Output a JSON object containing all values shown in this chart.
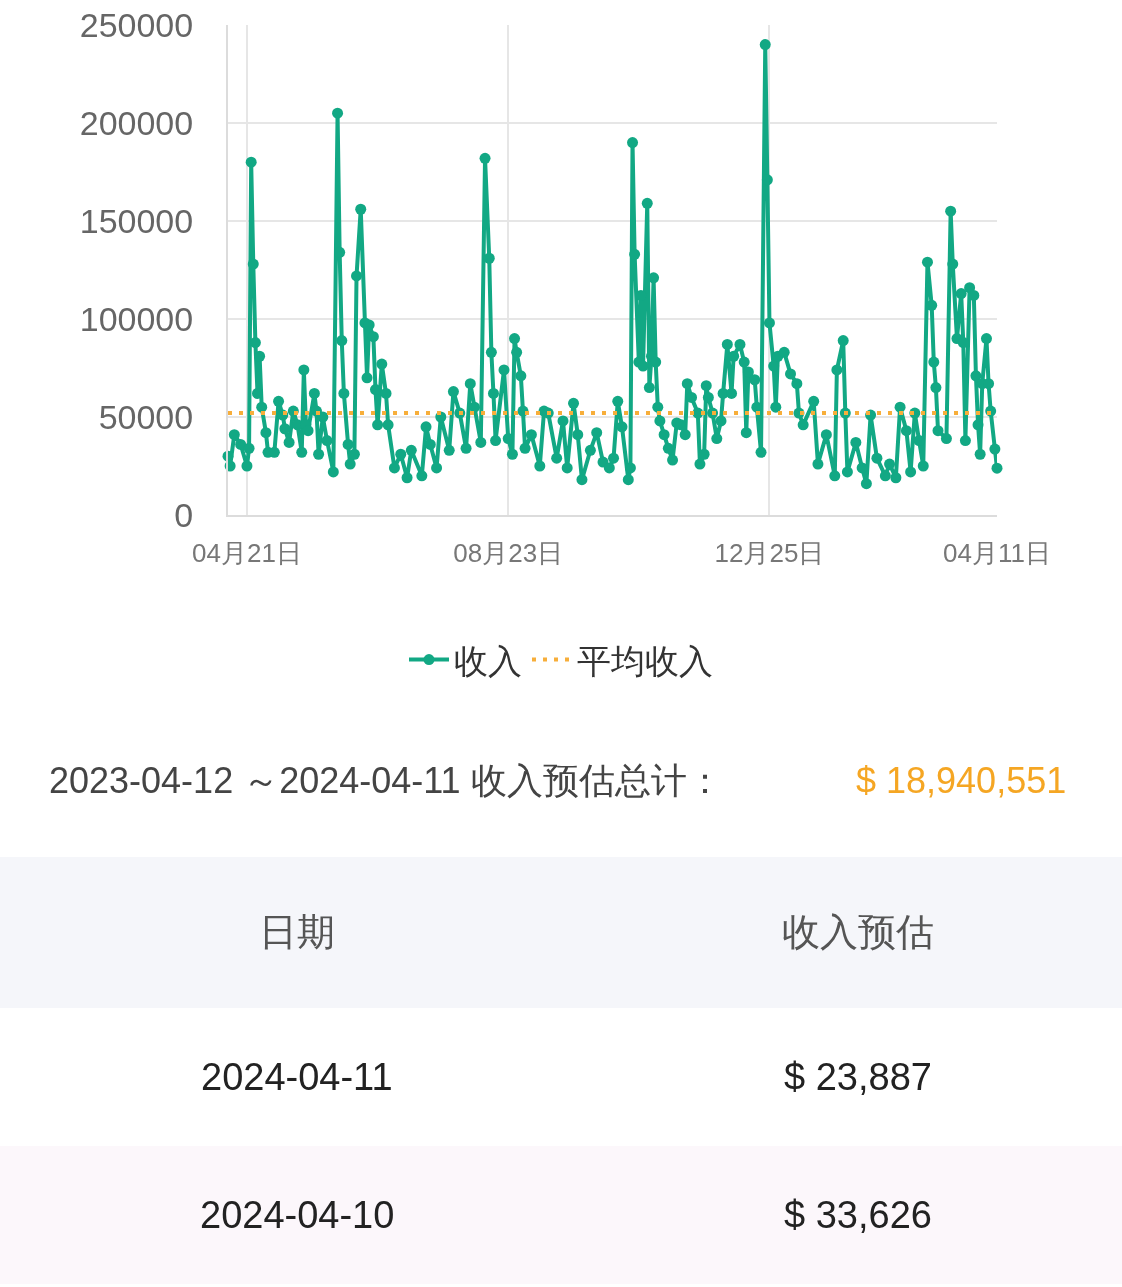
{
  "chart_data": {
    "type": "line",
    "xlim": [
      "2023-04-12",
      "2024-04-11"
    ],
    "xticks": [
      {
        "value": "2023-04-21",
        "label": "04月21日"
      },
      {
        "value": "2023-08-23",
        "label": "08月23日"
      },
      {
        "value": "2023-12-25",
        "label": "12月25日"
      },
      {
        "value": "2024-04-11",
        "label": "04月11日"
      }
    ],
    "ylim": [
      0,
      250000
    ],
    "yticks": [
      0,
      50000,
      100000,
      150000,
      200000,
      250000
    ],
    "grid": true,
    "legend": "bottom",
    "marker": "circle",
    "line_style": "solid",
    "series": [
      {
        "name": "收入",
        "color": "#12a884",
        "x": [
          "2023-04-12",
          "2023-04-13",
          "2023-04-15",
          "2023-04-18",
          "2023-04-21",
          "2023-04-22",
          "2023-04-23",
          "2023-04-24",
          "2023-04-25",
          "2023-04-26",
          "2023-04-27",
          "2023-04-28",
          "2023-04-30",
          "2023-05-01",
          "2023-05-04",
          "2023-05-06",
          "2023-05-08",
          "2023-05-09",
          "2023-05-11",
          "2023-05-13",
          "2023-05-15",
          "2023-05-17",
          "2023-05-18",
          "2023-05-19",
          "2023-05-20",
          "2023-05-23",
          "2023-05-24",
          "2023-05-25",
          "2023-05-27",
          "2023-05-29",
          "2023-06-01",
          "2023-06-03",
          "2023-06-04",
          "2023-06-05",
          "2023-06-06",
          "2023-06-08",
          "2023-06-09",
          "2023-06-11",
          "2023-06-12",
          "2023-06-14",
          "2023-06-16",
          "2023-06-17",
          "2023-06-18",
          "2023-06-20",
          "2023-06-21",
          "2023-06-22",
          "2023-06-24",
          "2023-06-26",
          "2023-06-27",
          "2023-06-30",
          "2023-07-03",
          "2023-07-06",
          "2023-07-08",
          "2023-07-13",
          "2023-07-15",
          "2023-07-17",
          "2023-07-20",
          "2023-07-22",
          "2023-07-26",
          "2023-07-28",
          "2023-07-31",
          "2023-08-03",
          "2023-08-05",
          "2023-08-07",
          "2023-08-10",
          "2023-08-12",
          "2023-08-14",
          "2023-08-15",
          "2023-08-16",
          "2023-08-17",
          "2023-08-21",
          "2023-08-23",
          "2023-08-25",
          "2023-08-26",
          "2023-08-27",
          "2023-08-29",
          "2023-08-30",
          "2023-08-31",
          "2023-09-03",
          "2023-09-07",
          "2023-09-09",
          "2023-09-11",
          "2023-09-15",
          "2023-09-18",
          "2023-09-20",
          "2023-09-23",
          "2023-09-25",
          "2023-09-27",
          "2023-10-01",
          "2023-10-04",
          "2023-10-07",
          "2023-10-10",
          "2023-10-12",
          "2023-10-14",
          "2023-10-16",
          "2023-10-19",
          "2023-10-20",
          "2023-10-21",
          "2023-10-22",
          "2023-10-24",
          "2023-10-25",
          "2023-10-26",
          "2023-10-28",
          "2023-10-29",
          "2023-10-30",
          "2023-10-31",
          "2023-11-01",
          "2023-11-02",
          "2023-11-03",
          "2023-11-05",
          "2023-11-07",
          "2023-11-09",
          "2023-11-11",
          "2023-11-13",
          "2023-11-15",
          "2023-11-16",
          "2023-11-18",
          "2023-11-21",
          "2023-11-22",
          "2023-11-24",
          "2023-11-25",
          "2023-11-26",
          "2023-11-28",
          "2023-11-30",
          "2023-12-02",
          "2023-12-03",
          "2023-12-05",
          "2023-12-07",
          "2023-12-08",
          "2023-12-11",
          "2023-12-13",
          "2023-12-14",
          "2023-12-15",
          "2023-12-18",
          "2023-12-19",
          "2023-12-21",
          "2023-12-23",
          "2023-12-24",
          "2023-12-25",
          "2023-12-27",
          "2023-12-28",
          "2023-12-29",
          "2024-01-01",
          "2024-01-04",
          "2024-01-07",
          "2024-01-08",
          "2024-01-10",
          "2024-01-15",
          "2024-01-17",
          "2024-01-21",
          "2024-01-25",
          "2024-01-26",
          "2024-01-29",
          "2024-01-30",
          "2024-01-31",
          "2024-02-04",
          "2024-02-07",
          "2024-02-09",
          "2024-02-11",
          "2024-02-14",
          "2024-02-18",
          "2024-02-20",
          "2024-02-23",
          "2024-02-25",
          "2024-02-28",
          "2024-03-01",
          "2024-03-03",
          "2024-03-05",
          "2024-03-07",
          "2024-03-09",
          "2024-03-11",
          "2024-03-12",
          "2024-03-13",
          "2024-03-14",
          "2024-03-18",
          "2024-03-20",
          "2024-03-21",
          "2024-03-23",
          "2024-03-25",
          "2024-03-26",
          "2024-03-27",
          "2024-03-29",
          "2024-03-31",
          "2024-04-01",
          "2024-04-02",
          "2024-04-03",
          "2024-04-04",
          "2024-04-06",
          "2024-04-07",
          "2024-04-08",
          "2024-04-10",
          "2024-04-11"
        ],
        "values": [
          30000,
          25000,
          41000,
          36000,
          25000,
          34000,
          180000,
          128000,
          88000,
          62000,
          81000,
          55000,
          42000,
          32000,
          32000,
          58000,
          51000,
          44000,
          37000,
          53000,
          46000,
          32000,
          74000,
          46000,
          43000,
          62000,
          53000,
          31000,
          50000,
          38000,
          22000,
          205000,
          134000,
          89000,
          62000,
          36000,
          26000,
          31000,
          122000,
          156000,
          98000,
          70000,
          97000,
          91000,
          64000,
          46000,
          77000,
          62000,
          46000,
          24000,
          31000,
          19000,
          33000,
          20000,
          45000,
          36000,
          24000,
          50000,
          33000,
          63000,
          52000,
          34000,
          67000,
          55000,
          37000,
          182000,
          131000,
          83000,
          62000,
          38000,
          74000,
          39000,
          31000,
          90000,
          83000,
          71000,
          53000,
          34000,
          41000,
          25000,
          53000,
          52000,
          29000,
          48000,
          24000,
          57000,
          41000,
          18000,
          33000,
          42000,
          27000,
          24000,
          29000,
          58000,
          45000,
          18000,
          24000,
          190000,
          133000,
          78000,
          112000,
          76000,
          159000,
          65000,
          81000,
          121000,
          78000,
          55000,
          48000,
          41000,
          34000,
          28000,
          47000,
          46000,
          41000,
          67000,
          60000,
          52000,
          26000,
          31000,
          66000,
          60000,
          52000,
          39000,
          48000,
          62000,
          87000,
          62000,
          81000,
          87000,
          78000,
          42000,
          73000,
          69000,
          55000,
          32000,
          240000,
          171000,
          98000,
          76000,
          55000,
          81000,
          83000,
          72000,
          67000,
          52000,
          46000,
          58000,
          26000,
          41000,
          20000,
          74000,
          89000,
          52000,
          22000,
          37000,
          24000,
          16000,
          51000,
          29000,
          20000,
          26000,
          19000,
          55000,
          43000,
          22000,
          52000,
          38000,
          25000,
          129000,
          107000,
          78000,
          65000,
          43000,
          39000,
          155000,
          128000,
          90000,
          113000,
          88000,
          38000,
          116000,
          112000,
          71000,
          46000,
          31000,
          67000,
          90000,
          67000,
          53000,
          33626,
          23887
        ]
      },
      {
        "name": "平均收入",
        "color": "#f7ae3a",
        "type": "line",
        "x": [
          "2023-04-12",
          "2024-04-11"
        ],
        "values": [
          52000,
          52000
        ],
        "line_style": "dotted",
        "marker": "none"
      }
    ],
    "annotations": [
      "2023-04-12 ～2024-04-11 收入预估总计：",
      "$ 18,940,551",
      "日期",
      "收入预估",
      "2024-04-11",
      "$ 23,887",
      "2024-04-10",
      "$ 33,626"
    ]
  }
}
